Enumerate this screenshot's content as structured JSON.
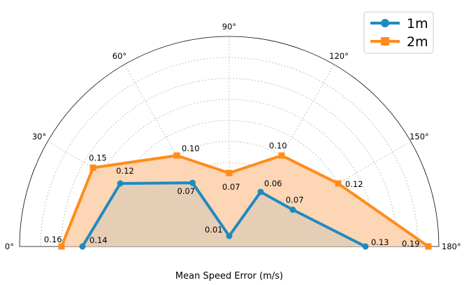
{
  "chart_data": {
    "type": "polar-line",
    "xlabel": "Mean Speed Error (m/s)",
    "angle_range_deg": [
      0,
      180
    ],
    "angle_ticks": [
      "0°",
      "30°",
      "60°",
      "90°",
      "120°",
      "150°",
      "180°"
    ],
    "angle_tick_values": [
      0,
      30,
      60,
      90,
      120,
      150,
      180
    ],
    "r_max": 0.2,
    "r_grid": [
      0.02,
      0.04,
      0.06,
      0.08,
      0.1,
      0.12,
      0.14,
      0.16,
      0.18
    ],
    "grid": true,
    "legend_position": "top-right",
    "angles_deg": [
      0,
      30,
      60,
      90,
      120,
      150,
      180
    ],
    "series": [
      {
        "name": "1m",
        "color": "#1f8ac0",
        "fill": "#e0cdb5",
        "marker": "circle",
        "values": [
          0.14,
          0.12,
          0.07,
          0.01,
          0.06,
          0.07,
          0.13
        ],
        "labels": [
          "0.14",
          "0.12",
          "0.07",
          "0.01",
          "0.06",
          "0.07",
          "0.13"
        ]
      },
      {
        "name": "2m",
        "color": "#ff8c1a",
        "fill": "#fdd2ad",
        "marker": "square",
        "values": [
          0.16,
          0.15,
          0.1,
          0.07,
          0.1,
          0.12,
          0.19
        ],
        "labels": [
          "0.16",
          "0.15",
          "0.10",
          "0.07",
          "0.10",
          "0.12",
          "0.19"
        ]
      }
    ]
  }
}
